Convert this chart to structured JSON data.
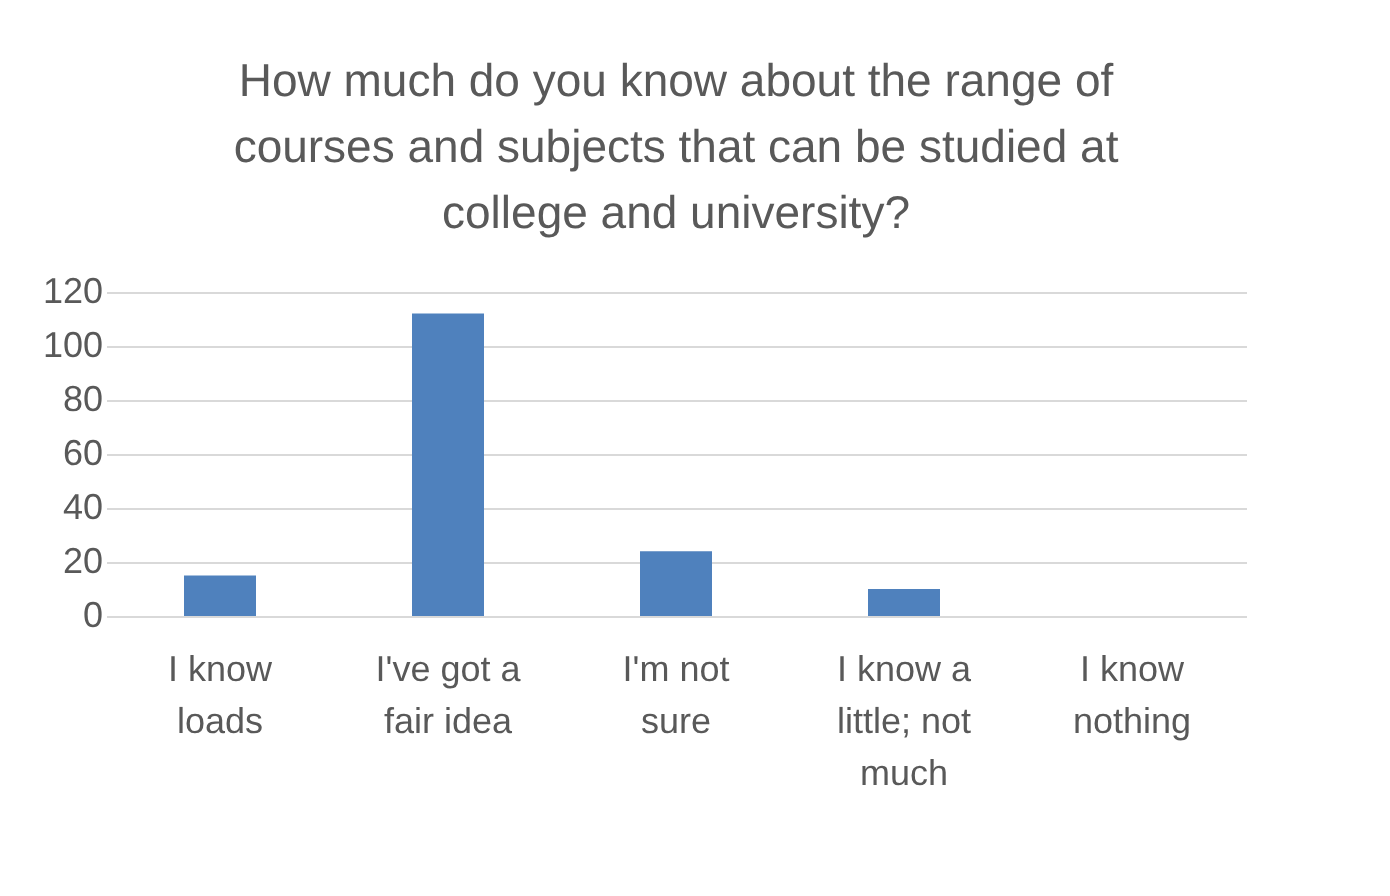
{
  "chart_data": {
    "type": "bar",
    "title": "How much do you know about the range of courses and subjects that can be studied at college and university?",
    "categories": [
      "I know loads",
      "I've got a fair idea",
      "I'm not sure",
      "I know a little; not much",
      "I know nothing"
    ],
    "values": [
      15,
      112,
      24,
      10,
      0
    ],
    "color": "#4f81bd",
    "ylim": [
      0,
      120
    ],
    "yticks": [
      0,
      20,
      40,
      60,
      80,
      100,
      120
    ],
    "grid": "y"
  }
}
